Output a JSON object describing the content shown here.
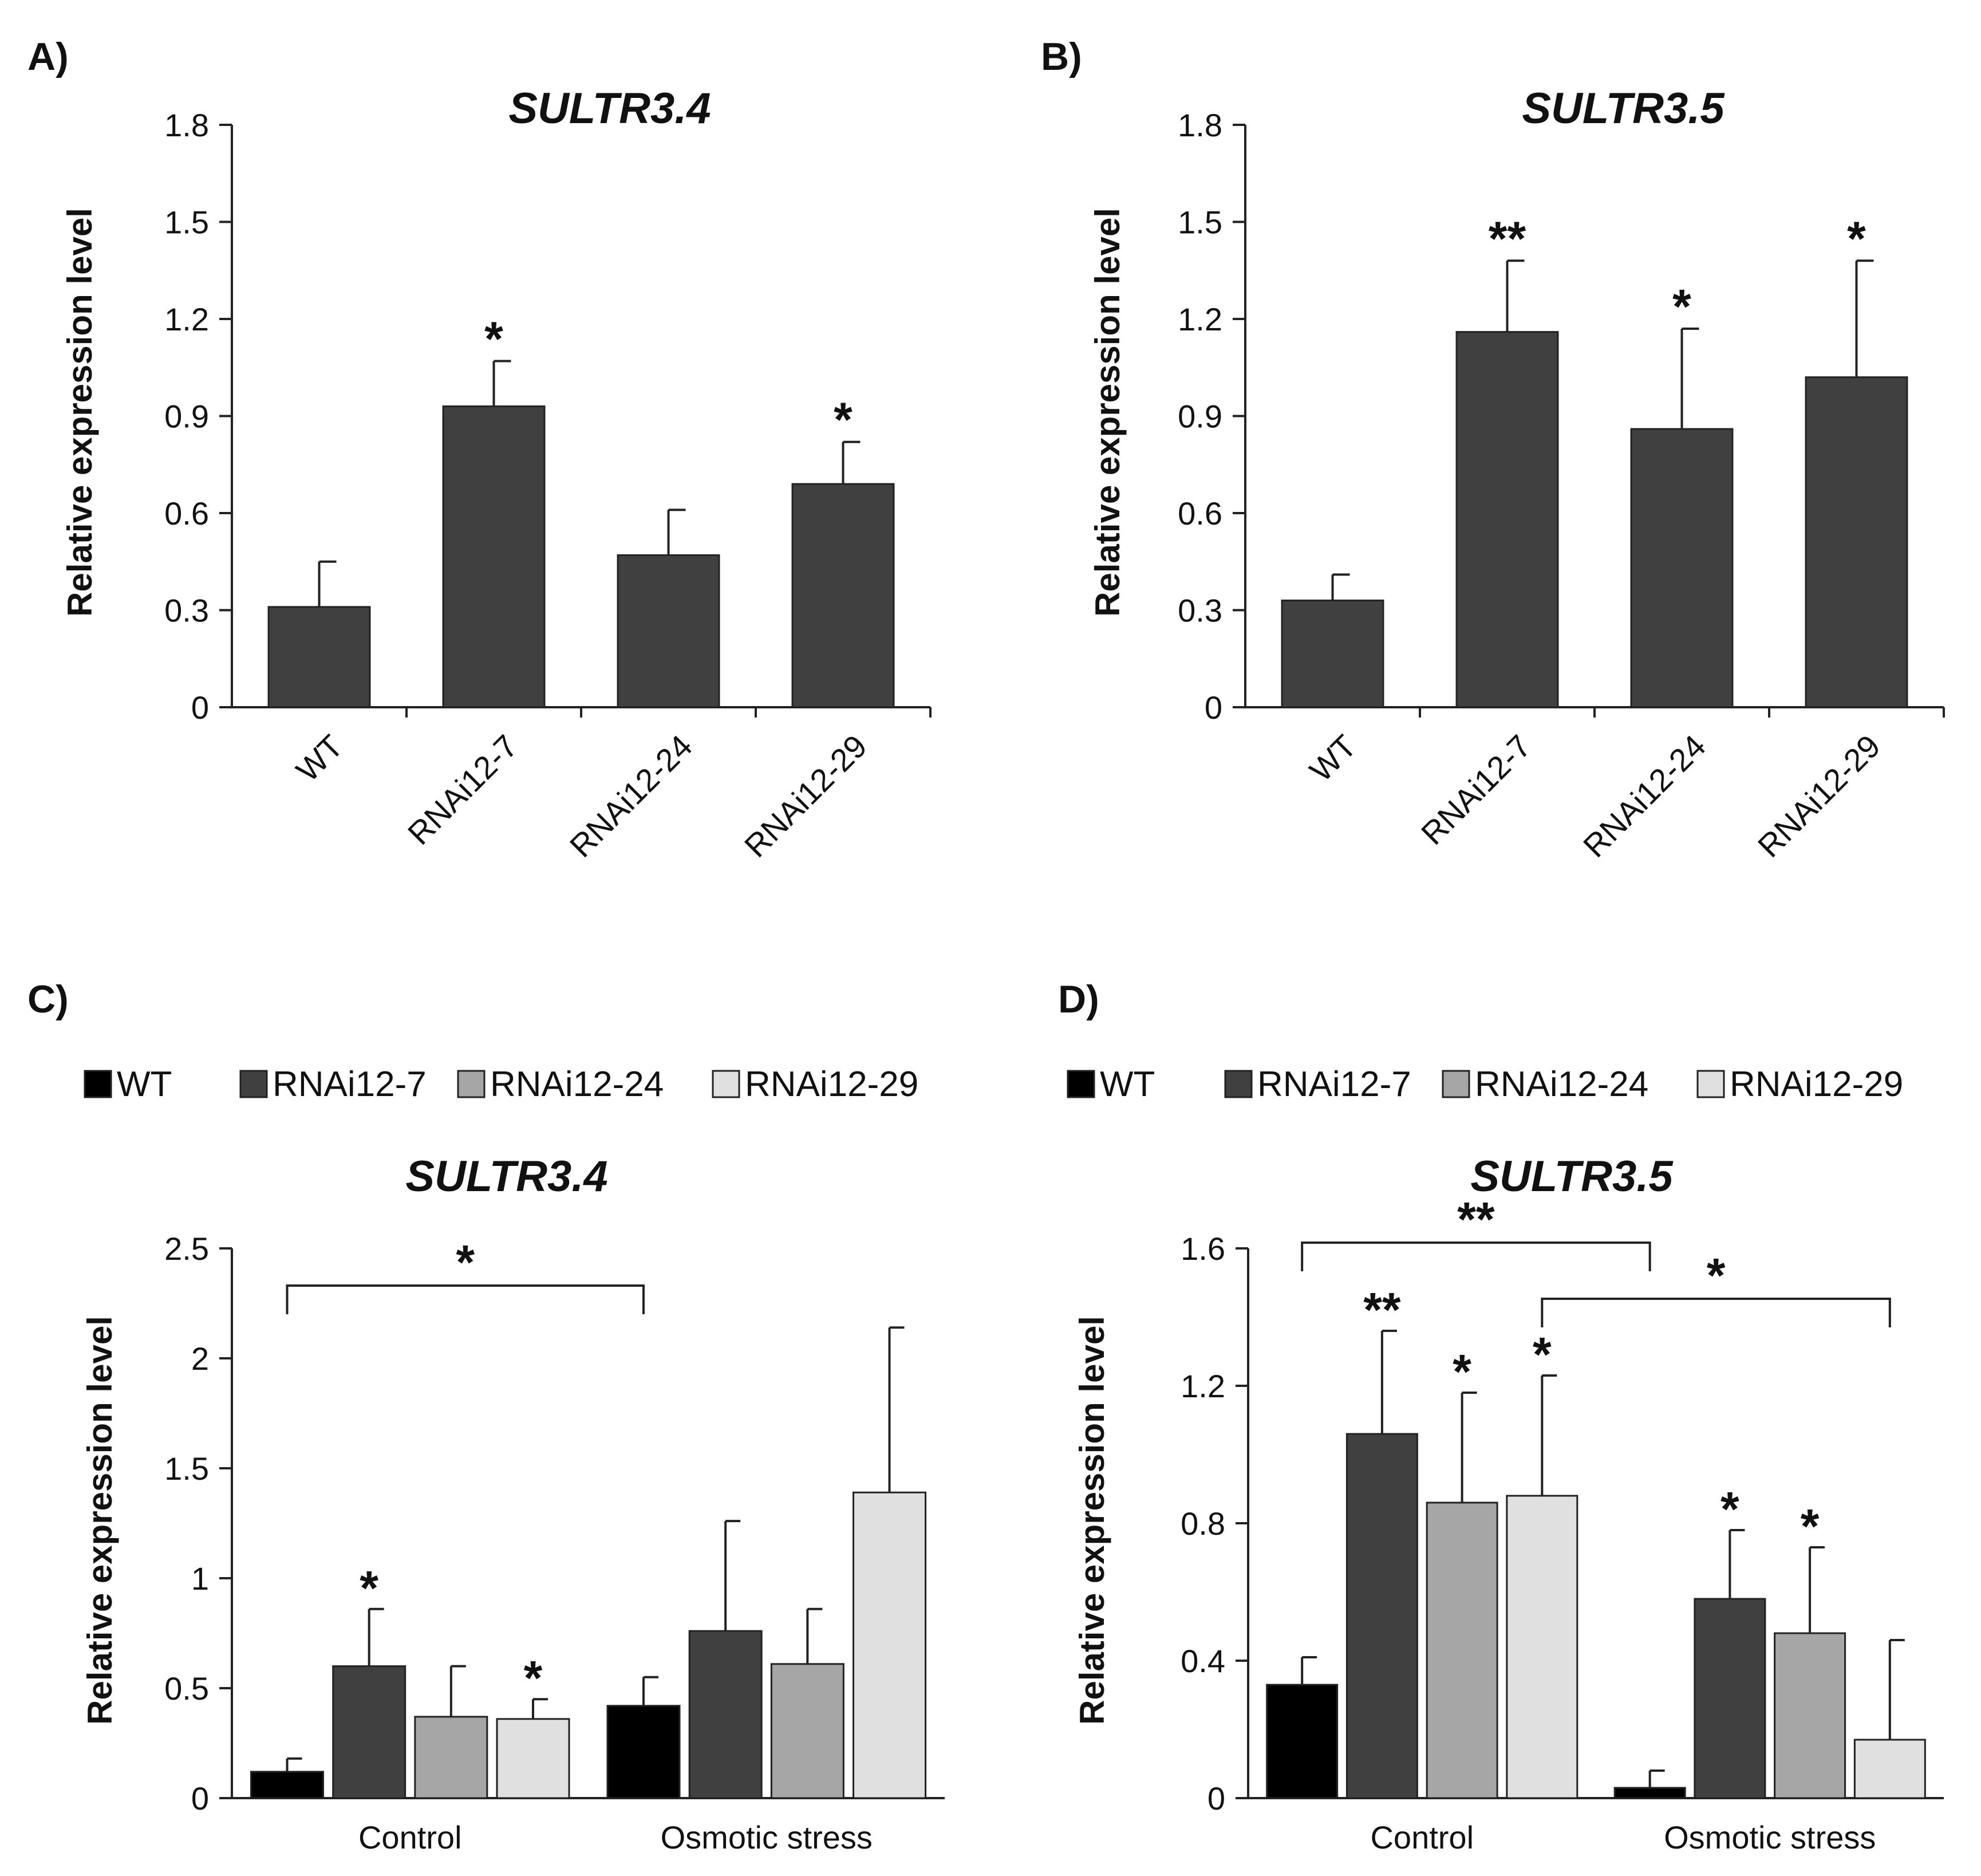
{
  "chart_data": [
    {
      "panel": "A)",
      "type": "bar",
      "title": "SULTR3.4",
      "ylabel": "Relative expression level",
      "xlabel": "",
      "ylim": [
        0,
        1.8
      ],
      "yticks": [
        "0",
        "0.3",
        "0.6",
        "0.9",
        "1.2",
        "1.5",
        "1.8"
      ],
      "categories": [
        "WT",
        "RNAi12-7",
        "RNAi12-24",
        "RNAi12-29"
      ],
      "values": [
        0.31,
        0.93,
        0.47,
        0.69
      ],
      "errors": [
        0.14,
        0.14,
        0.14,
        0.13
      ],
      "significance": [
        "",
        "*",
        "",
        "*"
      ],
      "bar_color": "#404040"
    },
    {
      "panel": "B)",
      "type": "bar",
      "title": "SULTR3.5",
      "ylabel": "Relative expression level",
      "xlabel": "",
      "ylim": [
        0,
        1.8
      ],
      "yticks": [
        "0",
        "0.3",
        "0.6",
        "0.9",
        "1.2",
        "1.5",
        "1.8"
      ],
      "categories": [
        "WT",
        "RNAi12-7",
        "RNAi12-24",
        "RNAi12-29"
      ],
      "values": [
        0.33,
        1.16,
        0.86,
        1.02
      ],
      "errors": [
        0.08,
        0.22,
        0.31,
        0.36
      ],
      "significance": [
        "",
        "**",
        "*",
        "*"
      ],
      "bar_color": "#404040"
    },
    {
      "panel": "C)",
      "type": "bar",
      "title": "SULTR3.4",
      "ylabel": "Relative expression level",
      "xlabel": "",
      "ylim": [
        0,
        2.5
      ],
      "yticks": [
        "0",
        "0.5",
        "1",
        "1.5",
        "2",
        "2.5"
      ],
      "categories": [
        "Control",
        "Osmotic stress"
      ],
      "series": [
        {
          "name": "WT",
          "color": "#000000",
          "values": [
            0.12,
            0.42
          ],
          "errors": [
            0.06,
            0.13
          ],
          "significance": [
            "",
            ""
          ]
        },
        {
          "name": "RNAi12-7",
          "color": "#404040",
          "values": [
            0.6,
            0.76
          ],
          "errors": [
            0.26,
            0.5
          ],
          "significance": [
            "*",
            ""
          ]
        },
        {
          "name": "RNAi12-24",
          "color": "#a6a6a6",
          "values": [
            0.37,
            0.61
          ],
          "errors": [
            0.23,
            0.25
          ],
          "significance": [
            "",
            ""
          ]
        },
        {
          "name": "RNAi12-29",
          "color": "#e0e0e0",
          "values": [
            0.36,
            1.39
          ],
          "errors": [
            0.09,
            0.75
          ],
          "significance": [
            "*",
            ""
          ]
        }
      ],
      "comparisons": [
        {
          "from": "WT / Control",
          "to": "WT / Osmotic stress",
          "label": "*"
        }
      ]
    },
    {
      "panel": "D)",
      "type": "bar",
      "title": "SULTR3.5",
      "ylabel": "Relative expression level",
      "xlabel": "",
      "ylim": [
        0,
        1.6
      ],
      "yticks": [
        "0",
        "0.4",
        "0.8",
        "1.2",
        "1.6"
      ],
      "categories": [
        "Control",
        "Osmotic stress"
      ],
      "series": [
        {
          "name": "WT",
          "color": "#000000",
          "values": [
            0.33,
            0.03
          ],
          "errors": [
            0.08,
            0.05
          ],
          "significance": [
            "",
            ""
          ]
        },
        {
          "name": "RNAi12-7",
          "color": "#404040",
          "values": [
            1.06,
            0.58
          ],
          "errors": [
            0.3,
            0.2
          ],
          "significance": [
            "**",
            "*"
          ]
        },
        {
          "name": "RNAi12-24",
          "color": "#a6a6a6",
          "values": [
            0.86,
            0.48
          ],
          "errors": [
            0.32,
            0.25
          ],
          "significance": [
            "*",
            "*"
          ]
        },
        {
          "name": "RNAi12-29",
          "color": "#e0e0e0",
          "values": [
            0.88,
            0.17
          ],
          "errors": [
            0.35,
            0.29
          ],
          "significance": [
            "*",
            ""
          ]
        }
      ],
      "comparisons": [
        {
          "from": "WT / Control",
          "to": "WT / Osmotic stress",
          "label": "**"
        },
        {
          "from": "RNAi12-29 / Control",
          "to": "RNAi12-29 / Osmotic stress",
          "label": "*"
        }
      ]
    }
  ]
}
